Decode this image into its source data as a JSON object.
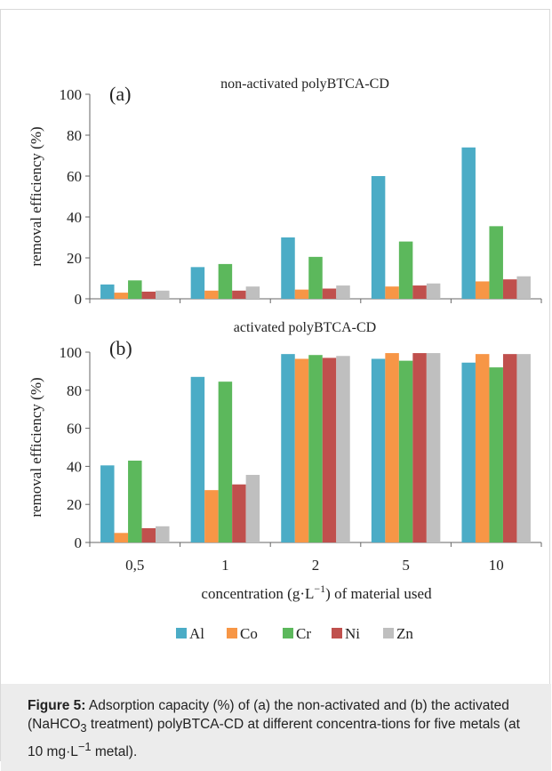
{
  "caption": {
    "label": "Figure 5:",
    "text_1": " Adsorption capacity (%) of (a) the non-activated and (b) the activated (NaHCO",
    "sub": "3",
    "text_2": " treatment) polyBTCA-CD at different concentra-tions for five metals (at 10 mg·L",
    "sup": "−1",
    "text_3": " metal)."
  },
  "chart_data": [
    {
      "type": "bar",
      "panel_label": "(a)",
      "title": "non-activated polyBTCA-CD",
      "ylabel": "removal efficiency (%)",
      "ylim": [
        0,
        100
      ],
      "yticks": [
        0,
        20,
        40,
        60,
        80,
        100
      ],
      "categories": [
        "0,5",
        "1",
        "2",
        "5",
        "10"
      ],
      "series": [
        {
          "name": "Al",
          "color": "#4bacc6",
          "values": [
            7,
            15.5,
            30,
            60,
            74
          ]
        },
        {
          "name": "Co",
          "color": "#f79646",
          "values": [
            3,
            4,
            4.5,
            6,
            8.5
          ]
        },
        {
          "name": "Cr",
          "color": "#5cb85c",
          "values": [
            9,
            17,
            20.5,
            28,
            35.5
          ]
        },
        {
          "name": "Ni",
          "color": "#c0504d",
          "values": [
            3.5,
            4,
            5,
            6.5,
            9.5
          ]
        },
        {
          "name": "Zn",
          "color": "#bfbfbf",
          "values": [
            4,
            6,
            6.5,
            7.5,
            11
          ]
        }
      ]
    },
    {
      "type": "bar",
      "panel_label": "(b)",
      "title": "activated polyBTCA-CD",
      "ylabel": "removal efficiency (%)",
      "xlabel_pre": "concentration (g·L",
      "xlabel_sup": "−1",
      "xlabel_post": ") of material used",
      "ylim": [
        0,
        100
      ],
      "yticks": [
        0,
        20,
        40,
        60,
        80,
        100
      ],
      "categories": [
        "0,5",
        "1",
        "2",
        "5",
        "10"
      ],
      "series": [
        {
          "name": "Al",
          "color": "#4bacc6",
          "values": [
            40.5,
            87,
            99,
            96.5,
            94.5
          ]
        },
        {
          "name": "Co",
          "color": "#f79646",
          "values": [
            5,
            27.5,
            96.5,
            99.5,
            99
          ]
        },
        {
          "name": "Cr",
          "color": "#5cb85c",
          "values": [
            43,
            84.5,
            98.5,
            95.5,
            92
          ]
        },
        {
          "name": "Ni",
          "color": "#c0504d",
          "values": [
            7.5,
            30.5,
            97,
            99.5,
            99
          ]
        },
        {
          "name": "Zn",
          "color": "#bfbfbf",
          "values": [
            8.5,
            35.5,
            98,
            99.5,
            99
          ]
        }
      ]
    }
  ]
}
